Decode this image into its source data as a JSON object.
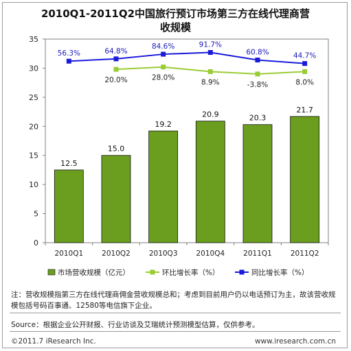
{
  "title_line1": "2010Q1-2011Q2中国旅行预订市场第三方在线代理商营",
  "title_line2": "收规模",
  "chart_data": {
    "type": "bar",
    "categories": [
      "2010Q1",
      "2010Q2",
      "2010Q3",
      "2010Q4",
      "2011Q1",
      "2011Q2"
    ],
    "ylim": [
      0,
      35
    ],
    "yticks": [
      0,
      5,
      10,
      15,
      20,
      25,
      30,
      35
    ],
    "grid": false,
    "legend_position": "bottom",
    "series": [
      {
        "name": "市场营收规模（亿元）",
        "type": "bar",
        "color": "#6b9e1f",
        "values": [
          12.5,
          15.0,
          19.2,
          20.9,
          20.3,
          21.7
        ],
        "labels": [
          "12.5",
          "15.0",
          "19.2",
          "20.9",
          "20.3",
          "21.7"
        ]
      },
      {
        "name": "环比增长率（%）",
        "type": "line",
        "color": "#99cc33",
        "values": [
          null,
          29.8,
          30.2,
          29.4,
          29.0,
          29.4
        ],
        "labels": [
          "",
          "20.0%",
          "28.0%",
          "8.9%",
          "-3.8%",
          "8.0%"
        ]
      },
      {
        "name": "同比增长率（%）",
        "type": "line",
        "color": "#1a1adb",
        "values": [
          31.2,
          31.6,
          32.4,
          32.7,
          31.4,
          30.8
        ],
        "labels": [
          "56.3%",
          "64.8%",
          "84.6%",
          "91.7%",
          "60.8%",
          "44.7%"
        ]
      }
    ]
  },
  "note": "注：营收规模指第三方在线代理商佣金营收规模总和；考虑到目前用户仍以电话预订为主，故该营收规模包括号码百事通、12580等电信旗下企业。",
  "source": "Source：根据企业公开财报、行业访谈及艾瑞统计预测模型估算，仅供参考。",
  "copyright": "©2011.7 iResearch Inc.",
  "website": "www.iresearch.com.cn"
}
